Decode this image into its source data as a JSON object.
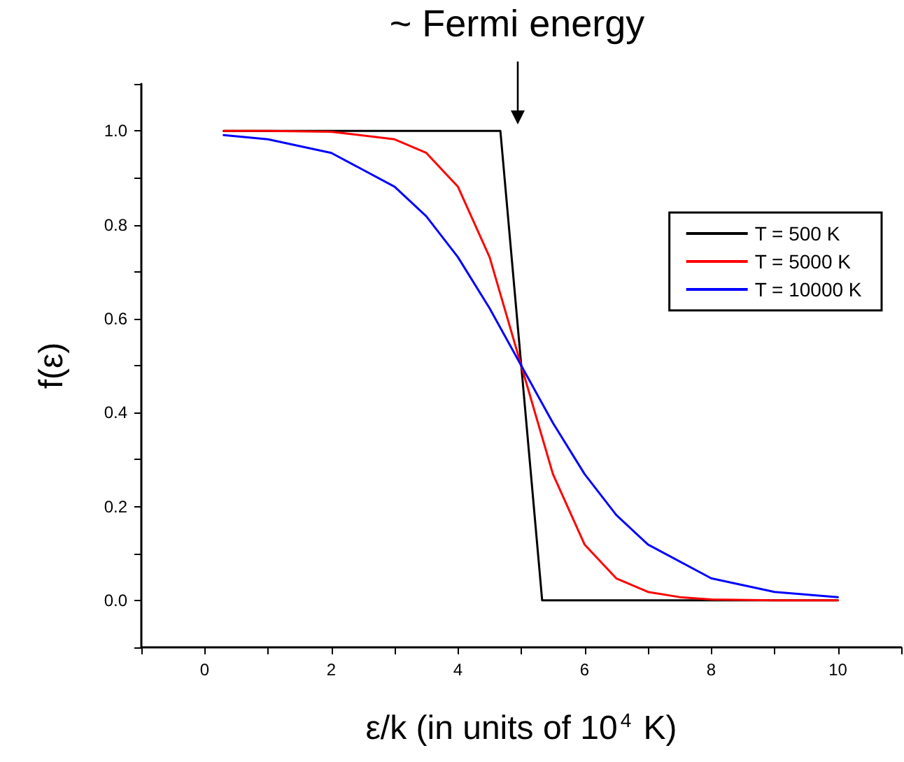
{
  "chart_data": {
    "type": "line",
    "xlabel": "ε/k (in units of 10$^{4}$ K)",
    "ylabel": "f(ε)",
    "annotations": [
      "~ Fermi energy"
    ],
    "series": [
      {
        "name": "T = 500 K",
        "color": "#000000",
        "x": [
          0.3,
          4.67,
          5.33,
          10
        ],
        "values": [
          1.0,
          1.0,
          0.0,
          0.0
        ]
      },
      {
        "name": "T = 5000 K",
        "color": "#ff0000",
        "x": [
          0.3,
          1,
          2,
          3,
          3.5,
          4,
          4.5,
          5,
          5.5,
          6,
          6.5,
          7,
          7.5,
          8,
          9,
          10
        ],
        "values": [
          1.0,
          1.0,
          0.998,
          0.982,
          0.953,
          0.881,
          0.731,
          0.5,
          0.269,
          0.119,
          0.047,
          0.018,
          0.007,
          0.002,
          0.0,
          0.0
        ]
      },
      {
        "name": "T = 10000 K",
        "color": "#0000ff",
        "x": [
          0.3,
          1,
          2,
          3,
          3.5,
          4,
          4.5,
          5,
          5.5,
          6,
          6.5,
          7,
          8,
          9,
          10
        ],
        "values": [
          0.991,
          0.982,
          0.953,
          0.881,
          0.818,
          0.731,
          0.622,
          0.5,
          0.378,
          0.269,
          0.182,
          0.119,
          0.047,
          0.018,
          0.007
        ]
      }
    ],
    "xlim": [
      -1,
      11
    ],
    "xticks": [
      {
        "value": -1,
        "label": null
      },
      0,
      {
        "value": 1,
        "label": null
      },
      2,
      {
        "value": 3,
        "label": null
      },
      4,
      {
        "value": 5,
        "label": null
      },
      6,
      {
        "value": 7,
        "label": null
      },
      8,
      {
        "value": 9,
        "label": null
      },
      10,
      {
        "value": 11,
        "label": null
      }
    ],
    "ylim": [
      -0.1,
      1.1
    ],
    "yticks": [
      {
        "value": -0.1,
        "label": null
      },
      {
        "value": 0,
        "label": "0.0"
      },
      {
        "value": 0.1,
        "label": null
      },
      {
        "value": 0.2,
        "label": "0.2"
      },
      {
        "value": 0.3,
        "label": null
      },
      {
        "value": 0.4,
        "label": "0.4"
      },
      {
        "value": 0.5,
        "label": null
      },
      {
        "value": 0.6,
        "label": "0.6"
      },
      {
        "value": 0.7,
        "label": null
      },
      {
        "value": 0.8,
        "label": "0.8"
      },
      {
        "value": 0.9,
        "label": null
      },
      {
        "value": 1.0,
        "label": "1.0"
      },
      {
        "value": 1.1,
        "label": null
      }
    ],
    "legend": "top right",
    "marker": "none",
    "line_style": "solid"
  }
}
